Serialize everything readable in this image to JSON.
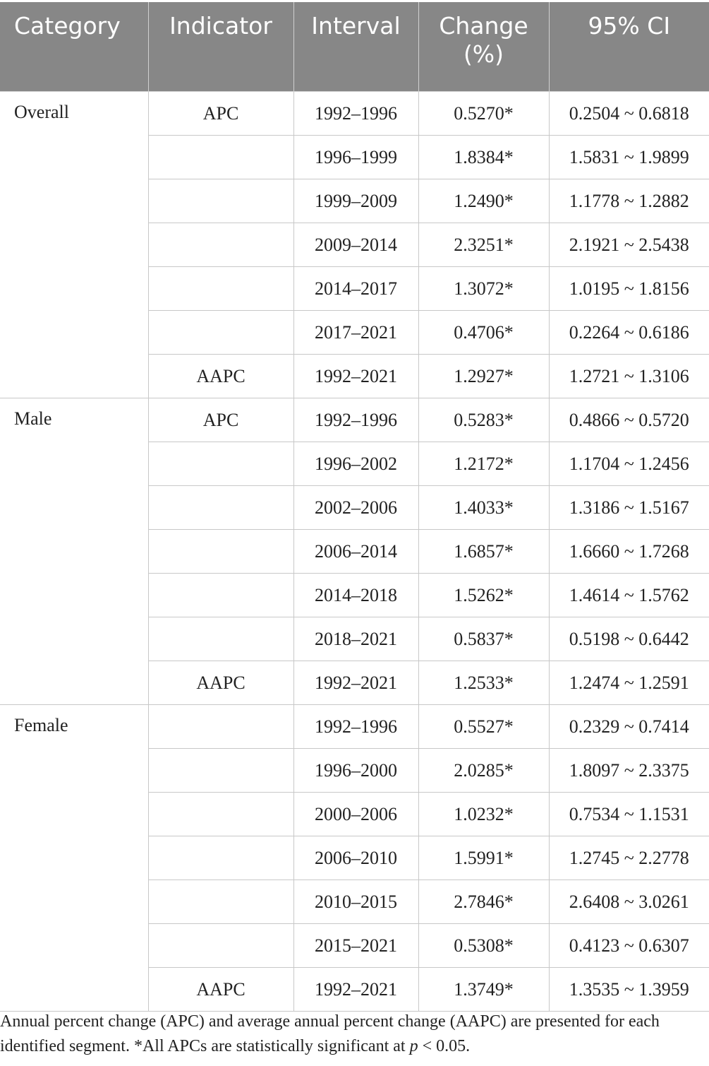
{
  "table": {
    "header": [
      "Category",
      "Indicator",
      "Interval",
      "Change (%)",
      "95% CI"
    ],
    "groups": [
      {
        "category": "Overall",
        "segments": [
          {
            "indicator": "APC",
            "interval": "1992–1996",
            "change": "0.5270*",
            "ci": "0.2504 ~ 0.6818"
          },
          {
            "indicator": null,
            "interval": "1996–1999",
            "change": "1.8384*",
            "ci": "1.5831 ~ 1.9899"
          },
          {
            "indicator": null,
            "interval": "1999–2009",
            "change": "1.2490*",
            "ci": "1.1778 ~ 1.2882"
          },
          {
            "indicator": null,
            "interval": "2009–2014",
            "change": "2.3251*",
            "ci": "2.1921 ~ 2.5438"
          },
          {
            "indicator": null,
            "interval": "2014–2017",
            "change": "1.3072*",
            "ci": "1.0195 ~ 1.8156"
          },
          {
            "indicator": null,
            "interval": "2017–2021",
            "change": "0.4706*",
            "ci": "0.2264 ~ 0.6186"
          },
          {
            "indicator": "AAPC",
            "interval": "1992–2021",
            "change": "1.2927*",
            "ci": "1.2721 ~ 1.3106"
          }
        ]
      },
      {
        "category": "Male",
        "segments": [
          {
            "indicator": "APC",
            "interval": "1992–1996",
            "change": "0.5283*",
            "ci": "0.4866 ~ 0.5720"
          },
          {
            "indicator": null,
            "interval": "1996–2002",
            "change": "1.2172*",
            "ci": "1.1704 ~ 1.2456"
          },
          {
            "indicator": null,
            "interval": "2002–2006",
            "change": "1.4033*",
            "ci": "1.3186 ~ 1.5167"
          },
          {
            "indicator": null,
            "interval": "2006–2014",
            "change": "1.6857*",
            "ci": "1.6660 ~ 1.7268"
          },
          {
            "indicator": null,
            "interval": "2014–2018",
            "change": "1.5262*",
            "ci": "1.4614 ~ 1.5762"
          },
          {
            "indicator": null,
            "interval": "2018–2021",
            "change": "0.5837*",
            "ci": "0.5198 ~ 0.6442"
          },
          {
            "indicator": "AAPC",
            "interval": "1992–2021",
            "change": "1.2533*",
            "ci": "1.2474 ~ 1.2591"
          }
        ]
      },
      {
        "category": "Female",
        "segments": [
          {
            "indicator": null,
            "interval": "1992–1996",
            "change": "0.5527*",
            "ci": "0.2329 ~ 0.7414"
          },
          {
            "indicator": null,
            "interval": "1996–2000",
            "change": "2.0285*",
            "ci": "1.8097 ~ 2.3375"
          },
          {
            "indicator": null,
            "interval": "2000–2006",
            "change": "1.0232*",
            "ci": "0.7534 ~ 1.1531"
          },
          {
            "indicator": null,
            "interval": "2006–2010",
            "change": "1.5991*",
            "ci": "1.2745 ~ 2.2778"
          },
          {
            "indicator": null,
            "interval": "2010–2015",
            "change": "2.7846*",
            "ci": "2.6408 ~ 3.0261"
          },
          {
            "indicator": null,
            "interval": "2015–2021",
            "change": "0.5308*",
            "ci": "0.4123 ~ 0.6307"
          },
          {
            "indicator": "AAPC",
            "interval": "1992–2021",
            "change": "1.3749*",
            "ci": "1.3535 ~ 1.3959"
          }
        ]
      }
    ]
  },
  "footnote": {
    "text": "Annual percent change (APC) and average annual percent change (AAPC) are presented for each identified segment. *All APCs are statistically significant at ",
    "italic": "p",
    "tail": " < 0.05."
  }
}
